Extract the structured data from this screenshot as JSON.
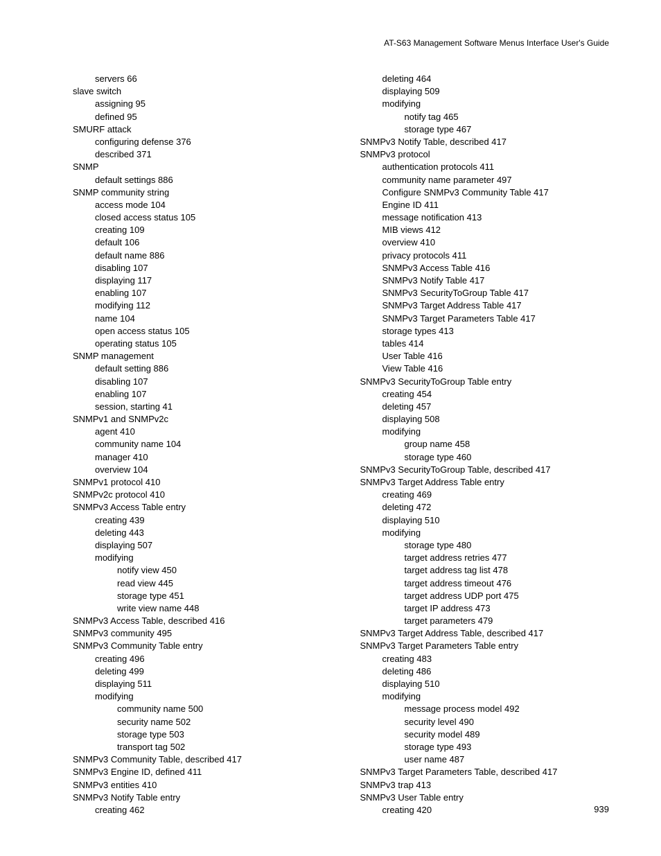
{
  "header": "AT-S63 Management Software Menus Interface User's Guide",
  "pageNumber": "939",
  "leftColumn": [
    {
      "indent": 2,
      "text": "servers 66"
    },
    {
      "indent": 1,
      "text": "slave switch"
    },
    {
      "indent": 2,
      "text": "assigning 95"
    },
    {
      "indent": 2,
      "text": "defined 95"
    },
    {
      "indent": 1,
      "text": "SMURF attack"
    },
    {
      "indent": 2,
      "text": "configuring defense 376"
    },
    {
      "indent": 2,
      "text": "described 371"
    },
    {
      "indent": 1,
      "text": "SNMP"
    },
    {
      "indent": 2,
      "text": "default settings 886"
    },
    {
      "indent": 1,
      "text": "SNMP community string"
    },
    {
      "indent": 2,
      "text": "access mode 104"
    },
    {
      "indent": 2,
      "text": "closed access status 105"
    },
    {
      "indent": 2,
      "text": "creating 109"
    },
    {
      "indent": 2,
      "text": "default 106"
    },
    {
      "indent": 2,
      "text": "default name 886"
    },
    {
      "indent": 2,
      "text": "disabling 107"
    },
    {
      "indent": 2,
      "text": "displaying 117"
    },
    {
      "indent": 2,
      "text": "enabling 107"
    },
    {
      "indent": 2,
      "text": "modifying 112"
    },
    {
      "indent": 2,
      "text": "name 104"
    },
    {
      "indent": 2,
      "text": "open access status 105"
    },
    {
      "indent": 2,
      "text": "operating status 105"
    },
    {
      "indent": 1,
      "text": "SNMP management"
    },
    {
      "indent": 2,
      "text": "default setting 886"
    },
    {
      "indent": 2,
      "text": "disabling 107"
    },
    {
      "indent": 2,
      "text": "enabling 107"
    },
    {
      "indent": 2,
      "text": "session, starting 41"
    },
    {
      "indent": 1,
      "text": "SNMPv1 and SNMPv2c"
    },
    {
      "indent": 2,
      "text": "agent 410"
    },
    {
      "indent": 2,
      "text": "community name 104"
    },
    {
      "indent": 2,
      "text": "manager 410"
    },
    {
      "indent": 2,
      "text": "overview 104"
    },
    {
      "indent": 1,
      "text": "SNMPv1 protocol 410"
    },
    {
      "indent": 1,
      "text": "SNMPv2c protocol 410"
    },
    {
      "indent": 1,
      "text": "SNMPv3 Access Table entry"
    },
    {
      "indent": 2,
      "text": "creating 439"
    },
    {
      "indent": 2,
      "text": "deleting 443"
    },
    {
      "indent": 2,
      "text": "displaying 507"
    },
    {
      "indent": 2,
      "text": "modifying"
    },
    {
      "indent": 3,
      "text": "notify view 450"
    },
    {
      "indent": 3,
      "text": "read view 445"
    },
    {
      "indent": 3,
      "text": "storage type 451"
    },
    {
      "indent": 3,
      "text": "write view name 448"
    },
    {
      "indent": 1,
      "text": "SNMPv3 Access Table, described 416"
    },
    {
      "indent": 1,
      "text": "SNMPv3 community 495"
    },
    {
      "indent": 1,
      "text": "SNMPv3 Community Table entry"
    },
    {
      "indent": 2,
      "text": "creating 496"
    },
    {
      "indent": 2,
      "text": "deleting 499"
    },
    {
      "indent": 2,
      "text": "displaying 511"
    },
    {
      "indent": 2,
      "text": "modifying"
    },
    {
      "indent": 3,
      "text": "community name 500"
    },
    {
      "indent": 3,
      "text": "security name 502"
    },
    {
      "indent": 3,
      "text": "storage type 503"
    },
    {
      "indent": 3,
      "text": "transport tag 502"
    },
    {
      "indent": 1,
      "text": "SNMPv3 Community Table, described 417"
    },
    {
      "indent": 1,
      "text": "SNMPv3 Engine ID, defined 411"
    },
    {
      "indent": 1,
      "text": "SNMPv3 entities 410"
    },
    {
      "indent": 1,
      "text": "SNMPv3 Notify Table entry"
    },
    {
      "indent": 2,
      "text": "creating 462"
    }
  ],
  "rightColumn": [
    {
      "indent": 2,
      "text": "deleting 464"
    },
    {
      "indent": 2,
      "text": "displaying 509"
    },
    {
      "indent": 2,
      "text": "modifying"
    },
    {
      "indent": 3,
      "text": "notify tag 465"
    },
    {
      "indent": 3,
      "text": "storage type 467"
    },
    {
      "indent": 1,
      "text": "SNMPv3 Notify Table, described 417"
    },
    {
      "indent": 1,
      "text": "SNMPv3 protocol"
    },
    {
      "indent": 2,
      "text": "authentication protocols 411"
    },
    {
      "indent": 2,
      "text": "community name parameter 497"
    },
    {
      "indent": 2,
      "text": "Configure SNMPv3 Community Table 417"
    },
    {
      "indent": 2,
      "text": "Engine ID 411"
    },
    {
      "indent": 2,
      "text": "message notification 413"
    },
    {
      "indent": 2,
      "text": "MIB views 412"
    },
    {
      "indent": 2,
      "text": "overview 410"
    },
    {
      "indent": 2,
      "text": "privacy protocols 411"
    },
    {
      "indent": 2,
      "text": "SNMPv3 Access Table 416"
    },
    {
      "indent": 2,
      "text": "SNMPv3 Notify Table 417"
    },
    {
      "indent": 2,
      "text": "SNMPv3 SecurityToGroup Table 417"
    },
    {
      "indent": 2,
      "text": "SNMPv3 Target Address Table 417"
    },
    {
      "indent": 2,
      "text": "SNMPv3 Target Parameters Table 417"
    },
    {
      "indent": 2,
      "text": "storage types 413"
    },
    {
      "indent": 2,
      "text": "tables 414"
    },
    {
      "indent": 2,
      "text": "User Table 416"
    },
    {
      "indent": 2,
      "text": "View Table 416"
    },
    {
      "indent": 1,
      "text": "SNMPv3 SecurityToGroup Table entry"
    },
    {
      "indent": 2,
      "text": "creating 454"
    },
    {
      "indent": 2,
      "text": "deleting 457"
    },
    {
      "indent": 2,
      "text": "displaying 508"
    },
    {
      "indent": 2,
      "text": "modifying"
    },
    {
      "indent": 3,
      "text": "group name 458"
    },
    {
      "indent": 3,
      "text": "storage type 460"
    },
    {
      "indent": 1,
      "text": "SNMPv3 SecurityToGroup Table, described 417"
    },
    {
      "indent": 1,
      "text": "SNMPv3 Target Address Table entry"
    },
    {
      "indent": 2,
      "text": "creating 469"
    },
    {
      "indent": 2,
      "text": "deleting 472"
    },
    {
      "indent": 2,
      "text": "displaying 510"
    },
    {
      "indent": 2,
      "text": "modifying"
    },
    {
      "indent": 3,
      "text": "storage type 480"
    },
    {
      "indent": 3,
      "text": "target address retries 477"
    },
    {
      "indent": 3,
      "text": "target address tag list 478"
    },
    {
      "indent": 3,
      "text": "target address timeout 476"
    },
    {
      "indent": 3,
      "text": "target address UDP port 475"
    },
    {
      "indent": 3,
      "text": "target IP address 473"
    },
    {
      "indent": 3,
      "text": "target parameters 479"
    },
    {
      "indent": 1,
      "text": "SNMPv3 Target Address Table, described 417"
    },
    {
      "indent": 1,
      "text": "SNMPv3 Target Parameters Table entry"
    },
    {
      "indent": 2,
      "text": "creating 483"
    },
    {
      "indent": 2,
      "text": "deleting 486"
    },
    {
      "indent": 2,
      "text": "displaying 510"
    },
    {
      "indent": 2,
      "text": "modifying"
    },
    {
      "indent": 3,
      "text": "message process model 492"
    },
    {
      "indent": 3,
      "text": "security level 490"
    },
    {
      "indent": 3,
      "text": "security model 489"
    },
    {
      "indent": 3,
      "text": "storage type 493"
    },
    {
      "indent": 3,
      "text": "user name 487"
    },
    {
      "indent": 1,
      "text": "SNMPv3 Target Parameters Table, described 417"
    },
    {
      "indent": 1,
      "text": "SNMPv3 trap 413"
    },
    {
      "indent": 1,
      "text": "SNMPv3 User Table entry"
    },
    {
      "indent": 2,
      "text": "creating 420"
    }
  ]
}
